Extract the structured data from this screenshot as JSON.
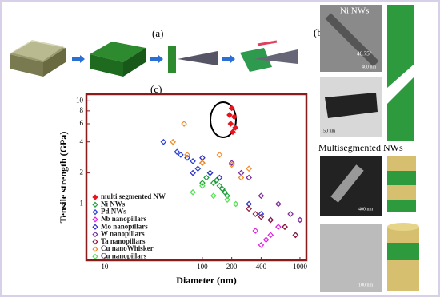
{
  "figure": {
    "panel_a": "(a)",
    "panel_b": "(b)",
    "panel_c": "(c)",
    "ni_title": "Ni NWs",
    "angle": "46.75°",
    "scale_1": "400 nm",
    "scale_2": "50 nm",
    "multi_title": "Multisegmented NWs",
    "scale_3": "400 nm",
    "scale_4": "100 nm"
  },
  "chart_data": {
    "type": "scatter",
    "xlabel": "Diameter (nm)",
    "ylabel": "Tensile strength (GPa)",
    "xlog": true,
    "ylog": true,
    "xlim": [
      7,
      1100
    ],
    "ylim": [
      0.3,
      11
    ],
    "xticks": [
      10,
      100,
      200,
      400,
      1000
    ],
    "yticks": [
      1,
      2,
      4,
      6,
      8,
      10
    ],
    "series": [
      {
        "name": "multi segmented NW",
        "color": "#e8141e",
        "marker_fill": true,
        "x": [
          200,
          212,
          195,
          218,
          205,
          190
        ],
        "values": [
          8.5,
          7,
          6,
          5.5,
          5,
          7.3
        ]
      },
      {
        "name": "Ni NWs",
        "color": "#1f9e3a",
        "marker_fill": false,
        "x": [
          110,
          130,
          150,
          160,
          170,
          140,
          120,
          180,
          100
        ],
        "values": [
          1.8,
          1.6,
          1.5,
          1.4,
          1.3,
          1.7,
          2,
          1.2,
          1.6
        ]
      },
      {
        "name": "Pd NWs",
        "color": "#2a3fd6",
        "marker_fill": false,
        "x": [
          40,
          55,
          70,
          80,
          90,
          100,
          60
        ],
        "values": [
          4,
          3.2,
          2.8,
          2.6,
          2.2,
          2.5,
          3
        ]
      },
      {
        "name": "Nb nanopillars",
        "color": "#e020e0",
        "marker_fill": false,
        "x": [
          400,
          450,
          500,
          350,
          600
        ],
        "values": [
          0.4,
          0.45,
          0.5,
          0.55,
          0.6
        ]
      },
      {
        "name": "Mo nanopillars",
        "color": "#3030c8",
        "marker_fill": false,
        "x": [
          80,
          100,
          120,
          150,
          300,
          400,
          500,
          700,
          900
        ],
        "values": [
          2,
          2.8,
          2,
          1.8,
          1,
          0.8,
          0.7,
          0.6,
          0.5
        ]
      },
      {
        "name": "W nanopillars",
        "color": "#7a2a9a",
        "marker_fill": false,
        "x": [
          200,
          250,
          300,
          400,
          600,
          800,
          1000
        ],
        "values": [
          2.5,
          2,
          1.8,
          1.2,
          1,
          0.8,
          0.7
        ]
      },
      {
        "name": "Ta nanopillars",
        "color": "#8b1a3a",
        "marker_fill": false,
        "x": [
          300,
          350,
          400,
          500,
          700,
          900
        ],
        "values": [
          0.9,
          0.8,
          0.75,
          0.7,
          0.6,
          0.5
        ]
      },
      {
        "name": "Cu nanoWhisker",
        "color": "#f08a2a",
        "marker_fill": false,
        "x": [
          50,
          65,
          70,
          100,
          150,
          200,
          250,
          300
        ],
        "values": [
          4,
          6,
          3,
          2.5,
          3,
          2.4,
          1.8,
          2.2
        ]
      },
      {
        "name": "Cu nanopillars",
        "color": "#50e050",
        "marker_fill": false,
        "x": [
          80,
          100,
          130,
          180,
          220
        ],
        "values": [
          1.3,
          1.5,
          1.2,
          1.1,
          1
        ]
      }
    ]
  }
}
